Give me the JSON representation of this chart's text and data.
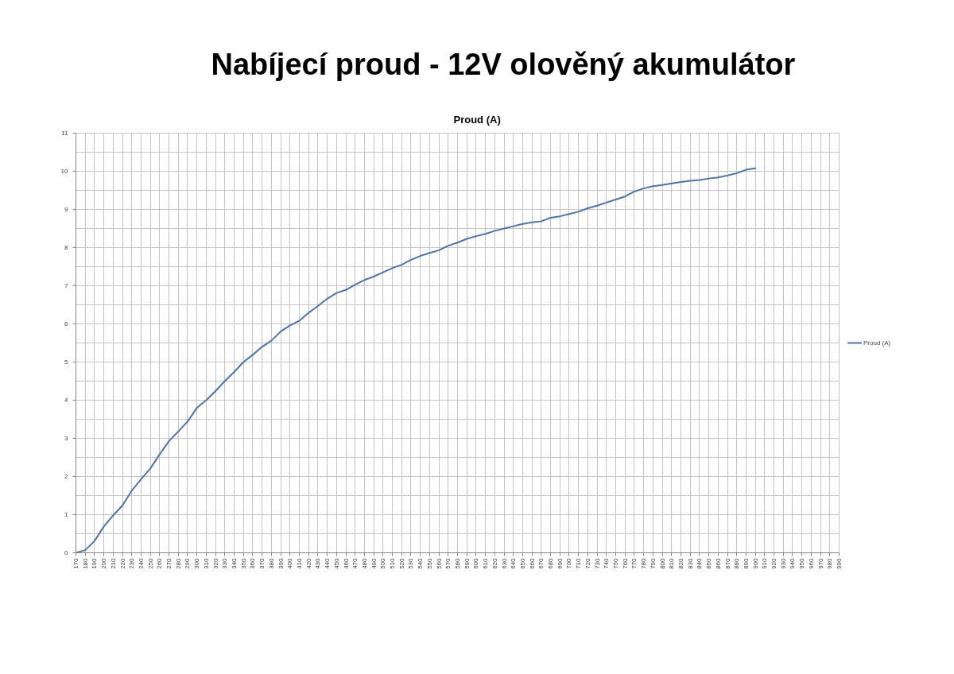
{
  "chart_data": {
    "type": "line",
    "title": "Nabíjecí proud - 12V olověný akumulátor",
    "subtitle": "Proud (A)",
    "x": [
      170,
      180,
      190,
      200,
      210,
      220,
      230,
      240,
      250,
      260,
      270,
      280,
      290,
      300,
      310,
      320,
      330,
      340,
      350,
      360,
      370,
      380,
      390,
      400,
      410,
      420,
      430,
      440,
      450,
      460,
      470,
      480,
      490,
      500,
      510,
      520,
      530,
      540,
      550,
      560,
      570,
      580,
      590,
      600,
      610,
      620,
      630,
      640,
      650,
      660,
      670,
      680,
      690,
      700,
      710,
      720,
      730,
      740,
      750,
      760,
      770,
      780,
      790,
      800,
      810,
      820,
      830,
      840,
      850,
      860,
      870,
      880,
      890,
      900
    ],
    "series": [
      {
        "name": "Proud (A)",
        "color": "#4d74a6",
        "values": [
          0,
          0.07,
          0.31,
          0.69,
          0.98,
          1.24,
          1.63,
          1.93,
          2.21,
          2.58,
          2.93,
          3.18,
          3.44,
          3.8,
          4.0,
          4.24,
          4.5,
          4.74,
          5.0,
          5.19,
          5.4,
          5.56,
          5.8,
          5.96,
          6.08,
          6.29,
          6.47,
          6.66,
          6.81,
          6.89,
          7.03,
          7.15,
          7.24,
          7.35,
          7.46,
          7.55,
          7.68,
          7.78,
          7.86,
          7.93,
          8.05,
          8.13,
          8.23,
          8.3,
          8.36,
          8.44,
          8.5,
          8.56,
          8.62,
          8.66,
          8.69,
          8.78,
          8.82,
          8.88,
          8.94,
          9.03,
          9.1,
          9.18,
          9.26,
          9.34,
          9.47,
          9.55,
          9.61,
          9.64,
          9.68,
          9.72,
          9.75,
          9.77,
          9.81,
          9.84,
          9.89,
          9.95,
          10.04,
          10.08
        ]
      }
    ],
    "xlim": [
      170,
      990
    ],
    "xticks": [
      170,
      180,
      190,
      200,
      210,
      220,
      230,
      240,
      250,
      260,
      270,
      280,
      290,
      300,
      310,
      320,
      330,
      340,
      350,
      360,
      370,
      380,
      390,
      400,
      410,
      420,
      430,
      440,
      450,
      460,
      470,
      480,
      490,
      500,
      510,
      520,
      530,
      540,
      550,
      560,
      570,
      580,
      590,
      600,
      610,
      620,
      630,
      640,
      650,
      660,
      670,
      680,
      690,
      700,
      710,
      720,
      730,
      740,
      750,
      760,
      770,
      780,
      790,
      800,
      810,
      820,
      830,
      840,
      850,
      860,
      870,
      880,
      890,
      900,
      910,
      920,
      930,
      940,
      950,
      960,
      970,
      980,
      990
    ],
    "ylim": [
      0,
      11
    ],
    "yticks": [
      0,
      1,
      2,
      3,
      4,
      5,
      6,
      7,
      8,
      9,
      10,
      11
    ],
    "grid": true,
    "legend": "right",
    "line_style": "solid"
  }
}
